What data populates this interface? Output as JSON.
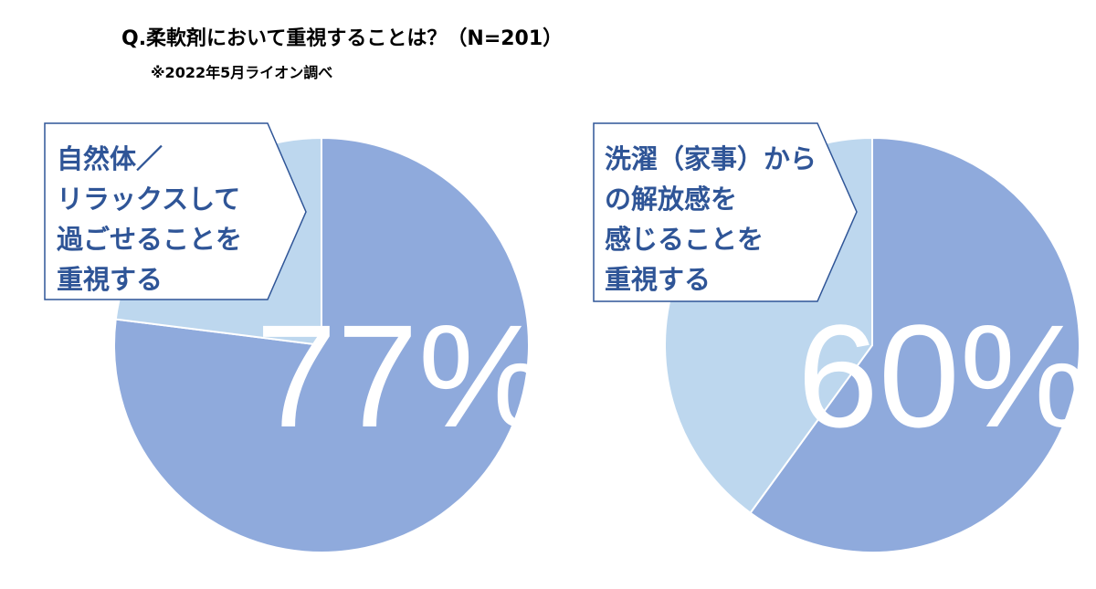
{
  "title": "Q.柔軟剤において重視することは？（N=201）",
  "subtitle": "※2022年5月ライオン調べ",
  "colors": {
    "main": "#8faadc",
    "rest": "#bdd7ee",
    "label_text": "#2f5597",
    "callout_border": "#2f5597"
  },
  "chart_data": [
    {
      "type": "pie",
      "label": "自然体／\nリラックスして\n過ごせることを\n重視する",
      "values": [
        77,
        23
      ],
      "value_label": "77%"
    },
    {
      "type": "pie",
      "label": "洗濯（家事）から\nの解放感を\n感じることを\n重視する",
      "values": [
        60,
        40
      ],
      "value_label": "60%"
    }
  ]
}
